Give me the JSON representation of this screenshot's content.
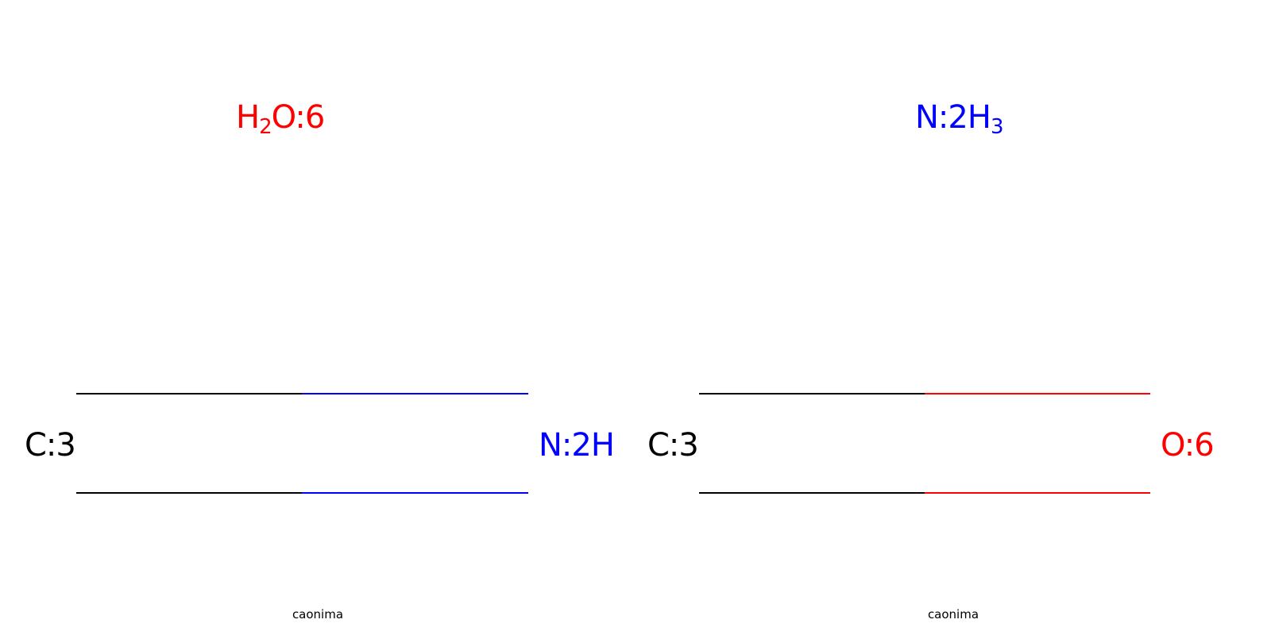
{
  "colors": {
    "carbon": "#000000",
    "nitrogen": "#0000FF",
    "oxygen": "#FF0000"
  },
  "panels": [
    {
      "top_molecule": {
        "element_a": "H",
        "sub_a": "2",
        "element_b": "O:6",
        "color": "#FF0000"
      },
      "left_atom": "C:3",
      "right_atom": "N:2H",
      "bond_colors": [
        "#000000",
        "#0000FF"
      ],
      "caption": "caonima"
    },
    {
      "top_molecule": {
        "element_a": "N:2H",
        "sub_a": "3",
        "color": "#0000FF"
      },
      "left_atom": "C:3",
      "right_atom": "O:6",
      "bond_colors": [
        "#000000",
        "#FF0000"
      ],
      "caption": "caonima"
    }
  ]
}
